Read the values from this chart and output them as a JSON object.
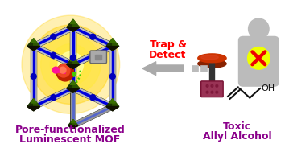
{
  "title_left_line1": "Pore-functionalized",
  "title_left_line2": "Luminescent MOF",
  "title_right_line1": "Toxic",
  "title_right_line2": "Allyl Alcohol",
  "trap_detect_line1": "Trap &",
  "trap_detect_line2": "Detect",
  "title_color": "#8B008B",
  "trap_color": "#FF0000",
  "background_color": "#FFFFFF",
  "mof_glow_inner": "#FFFFA0",
  "mof_glow_mid": "#FFE840",
  "mof_glow_outer": "#FFD000",
  "mof_tube_gray": "#C0C0C0",
  "mof_tube_dark": "#888888",
  "mof_blue": "#0000DD",
  "mof_node_dark": "#1A3300",
  "mof_node_mid": "#2D5500",
  "mof_node_light": "#3A7000",
  "person_color": "#BBBBBB",
  "cross_yellow": "#EEFF00",
  "cross_red": "#EE0000",
  "disk_top": "#CC3300",
  "disk_side": "#882200",
  "stem_color": "#333333",
  "base_color": "#993355",
  "base_dark": "#771133",
  "arrow_gray": "#AAAAAA",
  "mol_black": "#111111"
}
